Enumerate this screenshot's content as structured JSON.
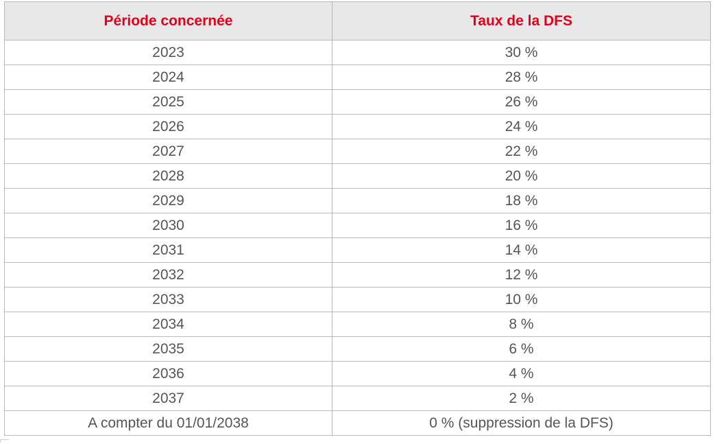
{
  "table": {
    "headers": [
      "Période concernée",
      "Taux de la DFS"
    ],
    "rows": [
      [
        "2023",
        "30 %"
      ],
      [
        "2024",
        "28 %"
      ],
      [
        "2025",
        "26 %"
      ],
      [
        "2026",
        "24 %"
      ],
      [
        "2027",
        "22 %"
      ],
      [
        "2028",
        "20 %"
      ],
      [
        "2029",
        "18 %"
      ],
      [
        "2030",
        "16 %"
      ],
      [
        "2031",
        "14 %"
      ],
      [
        "2032",
        "12 %"
      ],
      [
        "2033",
        "10 %"
      ],
      [
        "2034",
        "8 %"
      ],
      [
        "2035",
        "6 %"
      ],
      [
        "2036",
        "4 %"
      ],
      [
        "2037",
        "2 %"
      ],
      [
        "A compter du 01/01/2038",
        "0 % (suppression de la DFS)"
      ]
    ]
  },
  "colors": {
    "header_text": "#e3001b",
    "header_background": "#e8e8e8",
    "cell_text": "#555555",
    "border": "#b8b8b8"
  }
}
